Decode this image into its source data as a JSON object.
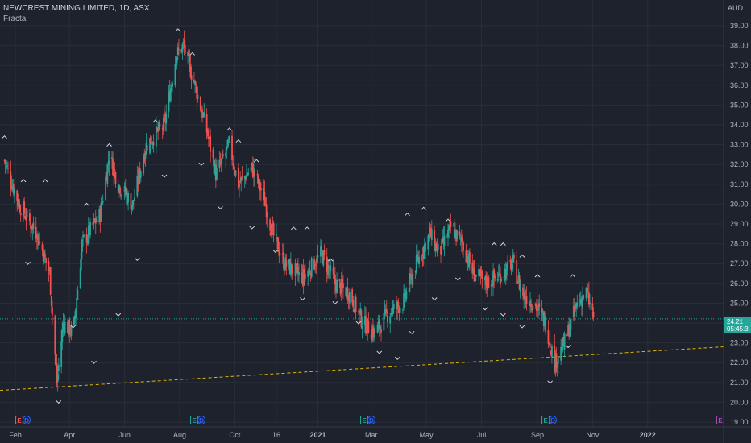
{
  "header": {
    "title": "NEWCREST MINING LIMITED, 1D, ASX",
    "indicator": "Fractal",
    "currency": "AUD"
  },
  "price_label": {
    "value": "24.21",
    "countdown": "05:45:3"
  },
  "colors": {
    "background": "#1e222d",
    "up": "#26a69a",
    "down": "#ef5350",
    "grid": "#2a2e39",
    "trendline": "#e0b400",
    "text": "#b2b5be"
  },
  "events": [
    {
      "type": "earnings",
      "letter": "E"
    },
    {
      "type": "dividend",
      "letter": "D"
    },
    {
      "type": "earnings",
      "letter": "E"
    },
    {
      "type": "dividend",
      "letter": "D"
    },
    {
      "type": "earnings",
      "letter": "E"
    },
    {
      "type": "dividend",
      "letter": "D"
    },
    {
      "type": "earnings",
      "letter": "E"
    },
    {
      "type": "dividend",
      "letter": "D"
    },
    {
      "type": "earnings-upcoming",
      "letter": "E"
    }
  ],
  "chart_data": {
    "type": "candlestick",
    "title": "NEWCREST MINING LIMITED, 1D, ASX",
    "indicator": "Fractal",
    "y_axis_labels": [
      "39.00",
      "38.00",
      "37.00",
      "36.00",
      "35.00",
      "34.00",
      "33.00",
      "32.00",
      "31.00",
      "30.00",
      "29.00",
      "28.00",
      "27.00",
      "26.00",
      "25.00",
      "24.00",
      "23.00",
      "22.00",
      "21.00",
      "20.00",
      "19.00"
    ],
    "ylim": [
      19,
      39.6
    ],
    "x_axis_labels": [
      "Feb",
      "Apr",
      "Jun",
      "Aug",
      "Oct",
      "16",
      "2021",
      "Mar",
      "May",
      "Jul",
      "Sep",
      "Nov",
      "2022"
    ],
    "last_price": 24.21,
    "grid": true,
    "trendline": {
      "from": {
        "x": "Jan 2020",
        "y": 20.6
      },
      "to": {
        "x": "Mar 2022",
        "y": 22.8
      },
      "style": "dashed"
    },
    "price_path": [
      [
        "2020-01-20",
        32.2
      ],
      [
        "2020-02-05",
        30.0
      ],
      [
        "2020-02-25",
        28.5
      ],
      [
        "2020-03-10",
        26.5
      ],
      [
        "2020-03-18",
        21.0
      ],
      [
        "2020-03-25",
        24.0
      ],
      [
        "2020-04-05",
        23.5
      ],
      [
        "2020-04-15",
        28.0
      ],
      [
        "2020-05-05",
        29.5
      ],
      [
        "2020-05-15",
        32.5
      ],
      [
        "2020-05-25",
        31.0
      ],
      [
        "2020-06-10",
        30.0
      ],
      [
        "2020-06-25",
        33.0
      ],
      [
        "2020-07-15",
        34.0
      ],
      [
        "2020-07-28",
        37.5
      ],
      [
        "2020-08-05",
        38.0
      ],
      [
        "2020-08-18",
        36.0
      ],
      [
        "2020-09-01",
        33.5
      ],
      [
        "2020-09-10",
        31.5
      ],
      [
        "2020-09-25",
        33.0
      ],
      [
        "2020-10-05",
        31.0
      ],
      [
        "2020-10-20",
        31.8
      ],
      [
        "2020-11-01",
        30.5
      ],
      [
        "2020-11-12",
        28.5
      ],
      [
        "2020-11-25",
        27.0
      ],
      [
        "2020-12-15",
        26.3
      ],
      [
        "2021-01-05",
        27.5
      ],
      [
        "2021-01-20",
        26.0
      ],
      [
        "2021-02-05",
        25.5
      ],
      [
        "2021-02-20",
        24.0
      ],
      [
        "2021-03-05",
        23.5
      ],
      [
        "2021-03-20",
        24.5
      ],
      [
        "2021-04-05",
        25.0
      ],
      [
        "2021-04-20",
        27.0
      ],
      [
        "2021-05-05",
        28.5
      ],
      [
        "2021-05-15",
        27.5
      ],
      [
        "2021-05-28",
        28.8
      ],
      [
        "2021-06-10",
        28.0
      ],
      [
        "2021-06-22",
        26.5
      ],
      [
        "2021-07-05",
        26.0
      ],
      [
        "2021-07-25",
        26.5
      ],
      [
        "2021-08-05",
        27.0
      ],
      [
        "2021-08-15",
        25.5
      ],
      [
        "2021-08-28",
        25.0
      ],
      [
        "2021-09-10",
        24.0
      ],
      [
        "2021-09-20",
        22.0
      ],
      [
        "2021-10-01",
        23.0
      ],
      [
        "2021-10-15",
        25.0
      ],
      [
        "2021-10-25",
        25.5
      ],
      [
        "2021-11-03",
        24.21
      ]
    ],
    "fractals_up": [
      [
        "2020-01-20",
        33.4
      ],
      [
        "2020-02-10",
        31.2
      ],
      [
        "2020-03-05",
        31.2
      ],
      [
        "2020-04-20",
        30.0
      ],
      [
        "2020-05-15",
        33.0
      ],
      [
        "2020-07-05",
        34.2
      ],
      [
        "2020-07-30",
        38.8
      ],
      [
        "2020-08-15",
        37.6
      ],
      [
        "2020-09-25",
        33.8
      ],
      [
        "2020-10-05",
        33.2
      ],
      [
        "2020-10-25",
        32.2
      ],
      [
        "2020-12-05",
        28.8
      ],
      [
        "2020-12-20",
        28.8
      ],
      [
        "2021-01-15",
        27.2
      ],
      [
        "2021-04-10",
        29.5
      ],
      [
        "2021-04-28",
        29.8
      ],
      [
        "2021-05-25",
        29.2
      ],
      [
        "2021-07-15",
        28.0
      ],
      [
        "2021-07-25",
        28.0
      ],
      [
        "2021-08-15",
        27.4
      ],
      [
        "2021-09-01",
        26.4
      ],
      [
        "2021-10-10",
        26.4
      ]
    ],
    "fractals_down": [
      [
        "2020-02-15",
        27.0
      ],
      [
        "2020-03-20",
        20.0
      ],
      [
        "2020-04-05",
        23.8
      ],
      [
        "2020-04-28",
        22.0
      ],
      [
        "2020-05-25",
        24.4
      ],
      [
        "2020-06-15",
        27.2
      ],
      [
        "2020-07-15",
        31.4
      ],
      [
        "2020-08-25",
        32.0
      ],
      [
        "2020-09-15",
        29.8
      ],
      [
        "2020-10-20",
        28.8
      ],
      [
        "2020-11-15",
        27.6
      ],
      [
        "2020-12-15",
        25.2
      ],
      [
        "2021-01-20",
        25.0
      ],
      [
        "2021-02-15",
        24.0
      ],
      [
        "2021-03-10",
        22.5
      ],
      [
        "2021-03-30",
        22.2
      ],
      [
        "2021-04-15",
        23.5
      ],
      [
        "2021-05-10",
        25.2
      ],
      [
        "2021-06-05",
        26.2
      ],
      [
        "2021-07-05",
        24.7
      ],
      [
        "2021-07-25",
        24.4
      ],
      [
        "2021-08-15",
        23.8
      ],
      [
        "2021-09-15",
        21.0
      ],
      [
        "2021-10-05",
        22.8
      ]
    ]
  }
}
